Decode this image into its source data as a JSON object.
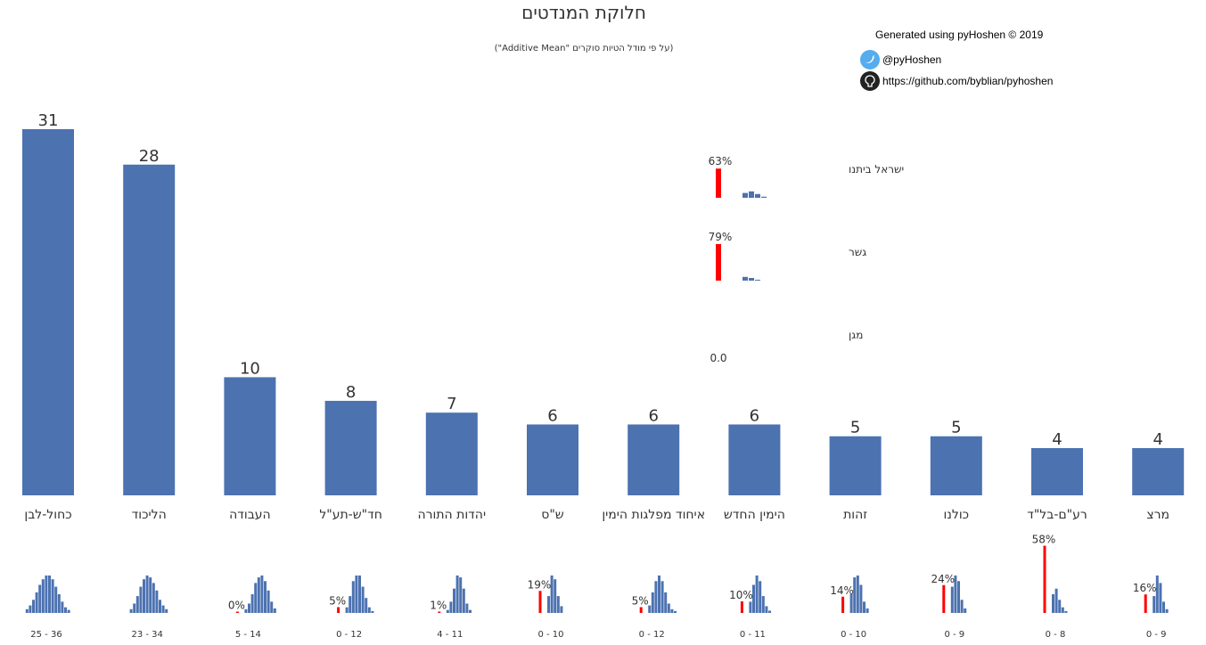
{
  "title": "חלוקת המנדטים",
  "subtitle": "(על פי מודל הטיות סוקרים \"Additive Mean\")",
  "credit": "Generated using pyHoshen © 2019",
  "twitter": "@pyHoshen",
  "github": "https://github.com/byblian/pyhoshen",
  "colors": {
    "bar": "#4c72b0",
    "threshold": "#ff0000",
    "text": "#333333"
  },
  "chart_data": {
    "type": "bar",
    "title": "חלוקת המנדטים",
    "ylim": [
      0,
      31
    ],
    "parties": [
      {
        "name": "כחול-לבן",
        "seats": 31,
        "range": "25 - 36",
        "below_pct": null,
        "dist": [
          0.1,
          0.2,
          0.35,
          0.55,
          0.75,
          0.9,
          1,
          1,
          0.9,
          0.7,
          0.5,
          0.3,
          0.15,
          0.08
        ]
      },
      {
        "name": "הליכוד",
        "seats": 28,
        "range": "23 - 34",
        "below_pct": null,
        "dist": [
          0.1,
          0.25,
          0.45,
          0.7,
          0.9,
          1,
          0.95,
          0.8,
          0.6,
          0.35,
          0.2,
          0.1
        ]
      },
      {
        "name": "העבודה",
        "seats": 10,
        "range": "5 - 14",
        "below_pct": "0%",
        "below_val": 0.0,
        "dist": [
          0.1,
          0.25,
          0.5,
          0.8,
          0.95,
          1,
          0.85,
          0.6,
          0.3,
          0.12
        ]
      },
      {
        "name": "חד\"ש-תע\"ל",
        "seats": 8,
        "range": "0 - 12",
        "below_pct": "5%",
        "below_val": 0.05,
        "dist": [
          0.15,
          0.45,
          0.85,
          1,
          1,
          0.7,
          0.4,
          0.15,
          0.05
        ]
      },
      {
        "name": "יהדות התורה",
        "seats": 7,
        "range": "4 - 11",
        "below_pct": "1%",
        "below_val": 0.01,
        "dist": [
          0.08,
          0.3,
          0.65,
          1,
          0.95,
          0.65,
          0.25,
          0.08
        ]
      },
      {
        "name": "ש\"ס",
        "seats": 6,
        "range": "0 - 10",
        "below_pct": "19%",
        "below_val": 0.19,
        "dist": [
          0.45,
          1,
          0.9,
          0.45,
          0.18
        ]
      },
      {
        "name": "איחוד מפלגות הימין",
        "seats": 6,
        "range": "0 - 12",
        "below_pct": "5%",
        "below_val": 0.05,
        "dist": [
          0.2,
          0.55,
          0.85,
          1,
          0.85,
          0.55,
          0.25,
          0.1,
          0.05
        ]
      },
      {
        "name": "הימין החדש",
        "seats": 6,
        "range": "0 - 11",
        "below_pct": "10%",
        "below_val": 0.1,
        "dist": [
          0.3,
          0.75,
          1,
          0.85,
          0.45,
          0.18,
          0.06
        ]
      },
      {
        "name": "זהות",
        "seats": 5,
        "range": "0 - 10",
        "below_pct": "14%",
        "below_val": 0.14,
        "dist": [
          0.5,
          0.95,
          1,
          0.75,
          0.3,
          0.12
        ]
      },
      {
        "name": "כולנו",
        "seats": 5,
        "range": "0 - 9",
        "below_pct": "24%",
        "below_val": 0.24,
        "dist": [
          0.7,
          1,
          0.85,
          0.35,
          0.12
        ]
      },
      {
        "name": "רע\"ם-בל\"ד",
        "seats": 4,
        "range": "0 - 8",
        "below_pct": "58%",
        "below_val": 0.58,
        "dist": [
          0.5,
          0.65,
          0.35,
          0.15,
          0.05
        ]
      },
      {
        "name": "מרצ",
        "seats": 4,
        "range": "0 - 9",
        "below_pct": "16%",
        "below_val": 0.16,
        "dist": [
          0.45,
          1,
          0.8,
          0.3,
          0.1
        ]
      }
    ],
    "below_threshold": [
      {
        "name": "ישראל ביתנו",
        "pct": "63%",
        "val": 0.63,
        "dist": [
          0.45,
          0.6,
          0.35,
          0.1
        ]
      },
      {
        "name": "גשר",
        "pct": "79%",
        "val": 0.79,
        "dist": [
          0.35,
          0.25,
          0.08
        ]
      },
      {
        "name": "מגן",
        "pct": "0.0",
        "val": 0,
        "dist": []
      }
    ]
  }
}
